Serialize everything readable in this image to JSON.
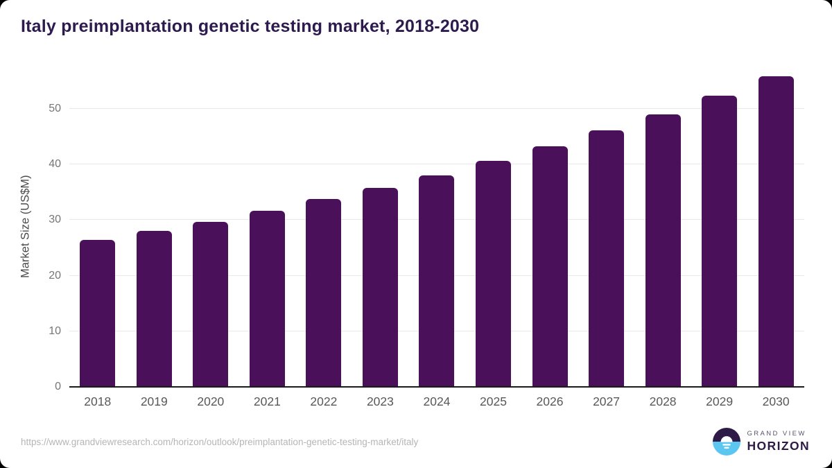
{
  "page": {
    "background": "#000000",
    "card_background": "#ffffff"
  },
  "chart_data": {
    "type": "bar",
    "title": "Italy preimplantation genetic testing market, 2018-2030",
    "xlabel": "",
    "ylabel": "Market Size (US$M)",
    "categories": [
      "2018",
      "2019",
      "2020",
      "2021",
      "2022",
      "2023",
      "2024",
      "2025",
      "2026",
      "2027",
      "2028",
      "2029",
      "2030"
    ],
    "values": [
      26.4,
      28.0,
      29.7,
      31.6,
      33.8,
      35.8,
      38.0,
      40.6,
      43.2,
      46.1,
      49.0,
      52.3,
      55.8
    ],
    "yticks": [
      0,
      10,
      20,
      30,
      40,
      50
    ],
    "ylim": [
      0,
      57.7
    ],
    "grid": true,
    "legend_position": "none",
    "bar_color": "#4a115a",
    "title_color": "#2d1b4e",
    "ytick_color": "#757575",
    "xtick_color": "#58585a",
    "gridline_color": "#e8e8e8",
    "axis_line_color": "#1a1a1a"
  },
  "footer": {
    "source_url": "https://www.grandviewresearch.com/horizon/outlook/preimplantation-genetic-testing-market/italy",
    "logo": {
      "line1": "GRAND VIEW",
      "line2": "HORIZON",
      "icon": "horizon-sunrise-circle",
      "purple": "#2e1a47",
      "blue": "#5bc6f0"
    }
  }
}
